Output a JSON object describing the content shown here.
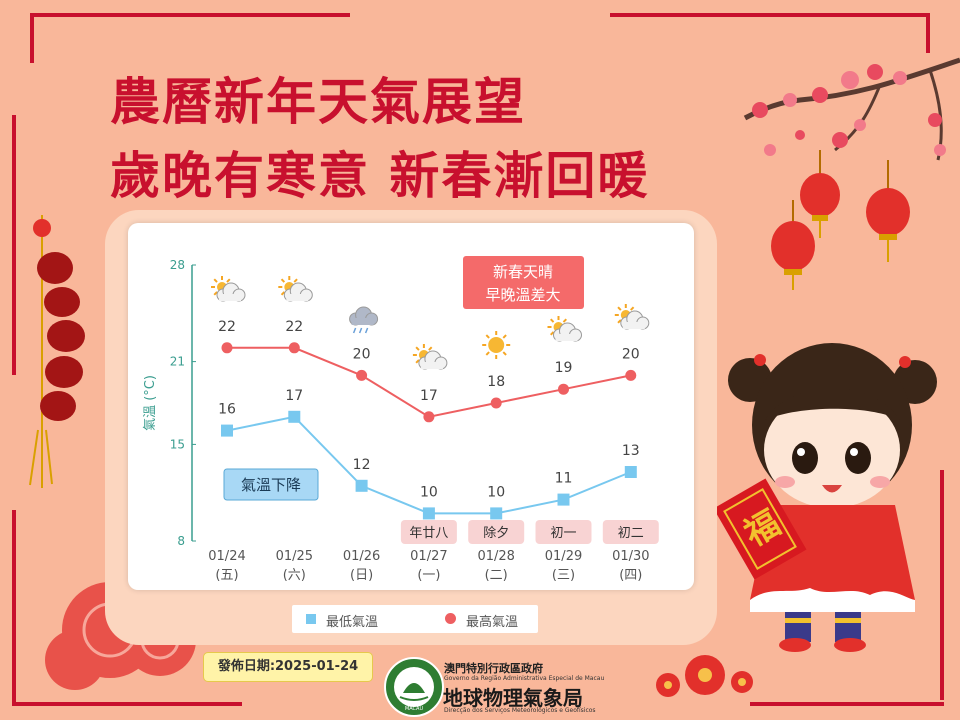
{
  "title_line1": "農曆新年天氣展望",
  "title_line2": "歲晚有寒意 新春漸回暖",
  "chart_data": {
    "type": "line",
    "ylabel": "氣溫 (°C)",
    "ylim": [
      8,
      28
    ],
    "yticks": [
      "8",
      "15",
      "21",
      "28"
    ],
    "categories": [
      "01/24",
      "01/25",
      "01/26",
      "01/27",
      "01/28",
      "01/29",
      "01/30"
    ],
    "weekdays": [
      "(五)",
      "(六)",
      "(日)",
      "(一)",
      "(二)",
      "(三)",
      "(四)"
    ],
    "series": [
      {
        "name": "最高氣溫",
        "color": "#ee5f61",
        "marker": "circle",
        "values": [
          22,
          22,
          20,
          17,
          18,
          19,
          20
        ]
      },
      {
        "name": "最低氣溫",
        "color": "#78c8ef",
        "marker": "square",
        "values": [
          16,
          17,
          12,
          10,
          10,
          11,
          13
        ]
      }
    ],
    "weather_icons": [
      "sun-cloud-icon",
      "sun-cloud-icon",
      "rain-cloud-icon",
      "sun-cloud-icon",
      "sun-icon",
      "sun-cloud-icon",
      "sun-cloud-icon"
    ],
    "festivals": [
      {
        "index": 3,
        "label": "年廿八"
      },
      {
        "index": 4,
        "label": "除夕"
      },
      {
        "index": 5,
        "label": "初一"
      },
      {
        "index": 6,
        "label": "初二"
      }
    ],
    "annotations": {
      "warm_line1": "新春天晴",
      "warm_line2": "早晚溫差大",
      "cold": "氣溫下降"
    },
    "grid": false,
    "legend": "bottom"
  },
  "publish": "發佈日期:2025-01-24",
  "bureau": {
    "gov": "澳門特別行政區政府",
    "gov_pt": "Governo da Região Administrativa Especial de Macau",
    "name": "地球物理氣象局",
    "name_pt": "Direcção dos Serviços Meteorológicos e Geofísicos",
    "logo_text": "MACAU"
  },
  "decor": {
    "fu": "福"
  },
  "colors": {
    "title": "#c8102e",
    "background": "#f9b79a",
    "high": "#ee5f61",
    "low": "#78c8ef",
    "axis": "#3a9d8f"
  }
}
